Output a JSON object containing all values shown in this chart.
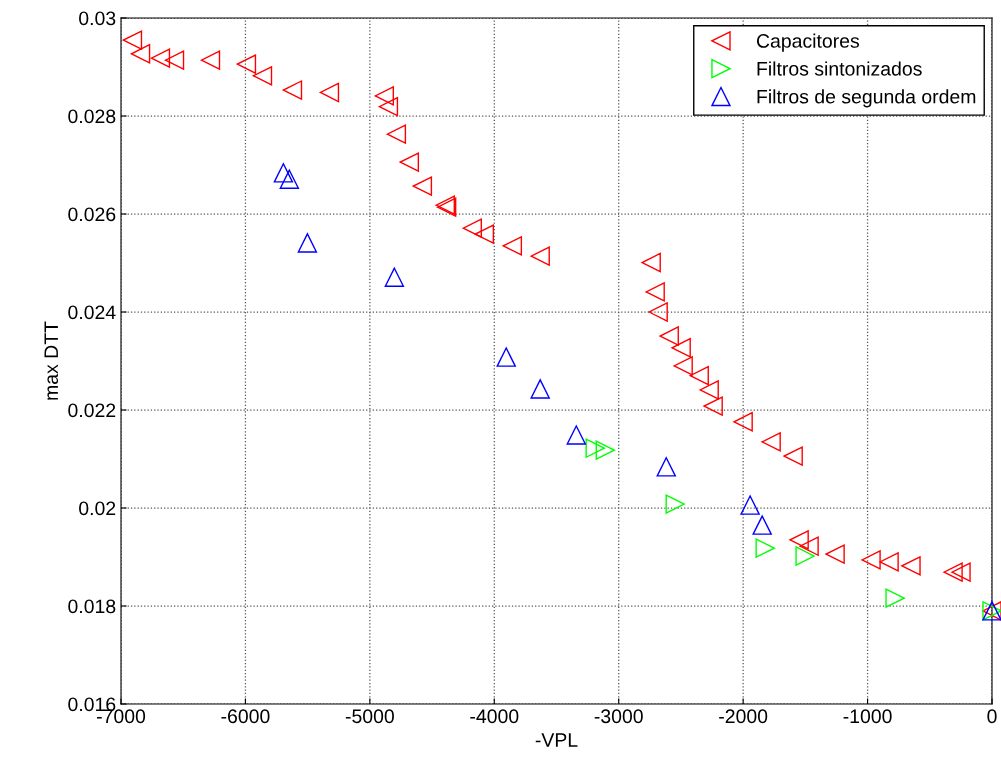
{
  "chart_data": {
    "type": "scatter",
    "xlabel": "-VPL",
    "ylabel": "max DTT",
    "xlim": [
      -7000,
      0
    ],
    "ylim": [
      0.016,
      0.03
    ],
    "xticks": [
      -7000,
      -6000,
      -5000,
      -4000,
      -3000,
      -2000,
      -1000,
      0
    ],
    "yticks": [
      0.016,
      0.018,
      0.02,
      0.022,
      0.024,
      0.026,
      0.028,
      0.03
    ],
    "grid": true,
    "legend": "top right",
    "series": [
      {
        "name": "Capacitores",
        "color": "#ff0000",
        "marker": "triangle_left",
        "x": [
          -6908,
          -6843,
          -6683,
          -6570,
          -6281,
          -5992,
          -5863,
          -5622,
          -5325,
          -4884,
          -4851,
          -4787,
          -4683,
          -4578,
          -4394,
          -4383,
          -4177,
          -4080,
          -3855,
          -3631,
          -2739,
          -2707,
          -2683,
          -2594,
          -2498,
          -2482,
          -2353,
          -2273,
          -2241,
          -2000,
          -1775,
          -1598,
          -1550,
          -1470,
          -1261,
          -972,
          -827,
          -651,
          -313,
          -249,
          0
        ],
        "values": [
          0.02955,
          0.02927,
          0.02918,
          0.02914,
          0.02914,
          0.02906,
          0.02882,
          0.02853,
          0.02848,
          0.02841,
          0.02819,
          0.02763,
          0.02706,
          0.02657,
          0.02618,
          0.02614,
          0.02571,
          0.02559,
          0.02535,
          0.02514,
          0.02501,
          0.02441,
          0.024,
          0.02351,
          0.02327,
          0.0229,
          0.0227,
          0.02241,
          0.02208,
          0.02176,
          0.02135,
          0.02106,
          0.01935,
          0.01922,
          0.01906,
          0.01894,
          0.0189,
          0.01882,
          0.01869,
          0.01869,
          0.0179
        ]
      },
      {
        "name": "Filtros sintonizados",
        "color": "#00ff00",
        "marker": "triangle_right",
        "x": [
          -3189,
          -3108,
          -2546,
          -1823,
          -1502,
          -779,
          0
        ],
        "values": [
          0.02122,
          0.02118,
          0.02008,
          0.01918,
          0.01902,
          0.01816,
          0.0179
        ]
      },
      {
        "name": "Filtros de segunda ordem",
        "color": "#0000ff",
        "marker": "triangle",
        "x": [
          -5695,
          -5647,
          -5502,
          -4803,
          -3904,
          -3631,
          -3341,
          -2618,
          -1944,
          -1847,
          0
        ],
        "values": [
          0.02684,
          0.02671,
          0.02541,
          0.02471,
          0.02308,
          0.02243,
          0.02149,
          0.02084,
          0.02006,
          0.01965,
          0.0179
        ]
      }
    ]
  }
}
